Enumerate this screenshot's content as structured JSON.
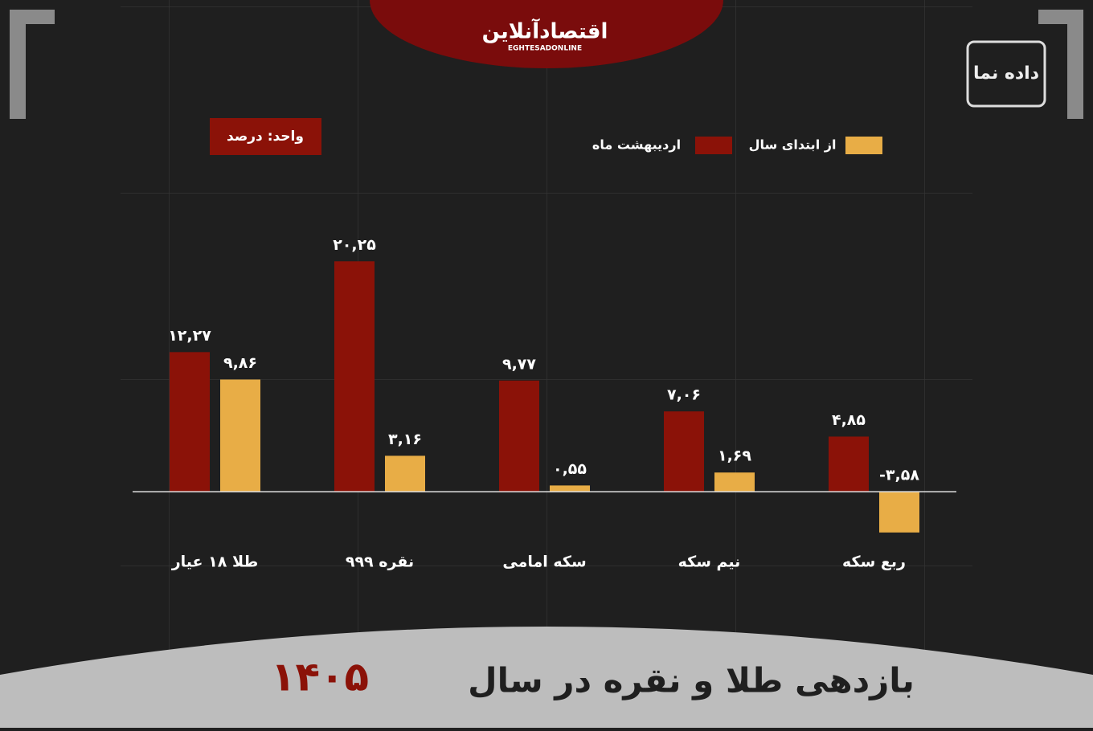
{
  "chart_data": {
    "type": "bar",
    "title": "بازدهی طلا و نقره در سال",
    "title_year": "۱۴۰۵",
    "unit_label": "واحد: درصد",
    "source_logo": "اقتصادآنلاین",
    "source_logo_latin": "EGHTESADONLINE",
    "brand_logo": "داده نما",
    "categories": [
      "طلا ۱۸ عیار",
      "نقره ۹۹۹",
      "سکه امامی",
      "نیم سکه",
      "ربع سکه"
    ],
    "series": [
      {
        "name": "اردیبهشت ماه",
        "color": "#8b1208",
        "values": [
          12.27,
          20.25,
          9.77,
          7.06,
          4.85
        ],
        "value_labels": [
          "۱۲,۲۷",
          "۲۰,۲۵",
          "۹,۷۷",
          "۷,۰۶",
          "۴,۸۵"
        ]
      },
      {
        "name": "از ابتدای سال",
        "color": "#e8ad46",
        "values": [
          9.86,
          3.16,
          0.55,
          1.69,
          -3.58
        ],
        "value_labels": [
          "۹,۸۶",
          "۳,۱۶",
          "۰,۵۵",
          "۱,۶۹",
          "-۳,۵۸"
        ]
      }
    ],
    "ylim": [
      -5,
      25
    ]
  }
}
